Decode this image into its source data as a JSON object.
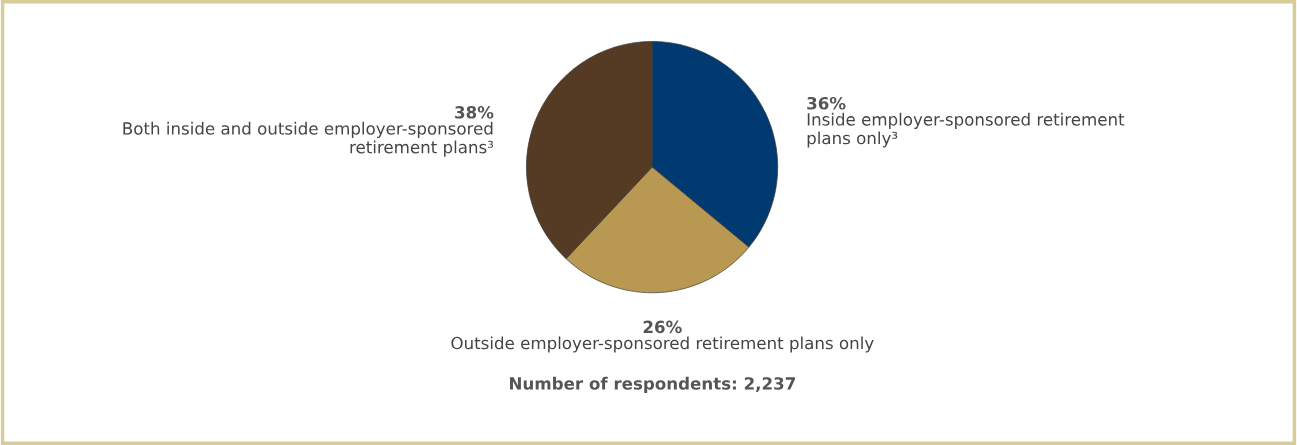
{
  "chart_data": {
    "type": "pie",
    "categories": [
      "Inside employer-sponsored retirement\nplans only³",
      "Outside employer-sponsored retirement plans only",
      "Both inside and outside employer-sponsored\nretirement plans³"
    ],
    "values": [
      36,
      26,
      38
    ],
    "colors": [
      "#003a70",
      "#b99852",
      "#553b24"
    ],
    "value_labels": [
      "36%",
      "26%",
      "38%"
    ],
    "annotations": [
      "Number of respondents: 2,237"
    ]
  }
}
